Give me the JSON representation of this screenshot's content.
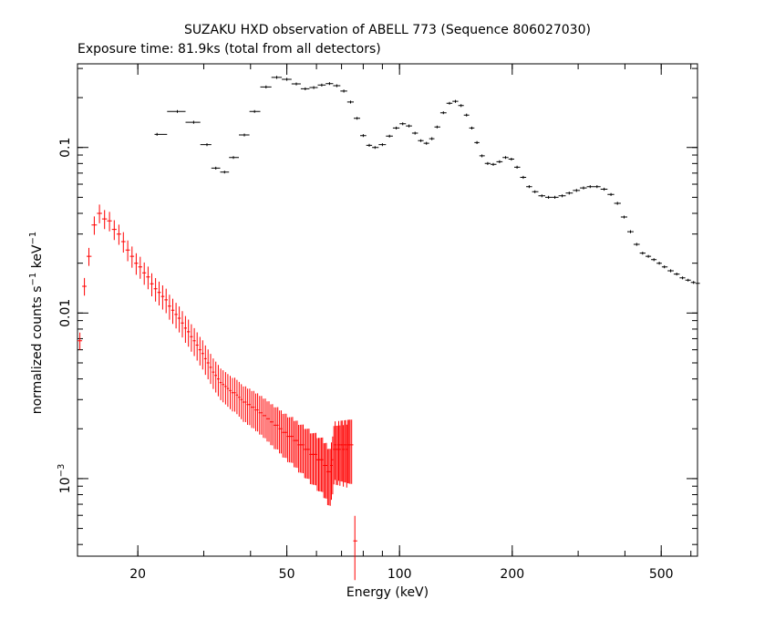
{
  "chart_data": {
    "type": "scatter",
    "title": "SUZAKU HXD observation of ABELL 773 (Sequence 806027030)",
    "subtitle": "Exposure time: 81.9ks (total from all detectors)",
    "xlabel": "Energy (keV)",
    "ylabel": "normalized counts s^-1 keV^-1",
    "ylabel_parts": {
      "main": "normalized counts s",
      "sup1": "−1",
      "unit": " keV",
      "sup2": "−1"
    },
    "x_scale": "log",
    "y_scale": "log",
    "xlim": [
      13.8,
      625
    ],
    "ylim": [
      0.00034,
      0.32
    ],
    "grid": false,
    "x_ticks": [
      {
        "value": 20,
        "label": "20"
      },
      {
        "value": 50,
        "label": "50"
      },
      {
        "value": 100,
        "label": "100"
      },
      {
        "value": 200,
        "label": "200"
      },
      {
        "value": 500,
        "label": "500"
      }
    ],
    "y_ticks": [
      {
        "value": 0.1,
        "label": "0.1"
      },
      {
        "value": 0.01,
        "label": "0.01"
      },
      {
        "value": 0.001,
        "label": "10",
        "sup": "−3"
      }
    ],
    "series": [
      {
        "color": "#000000",
        "points": [
          [
            22.5,
            0.12
          ],
          [
            25.5,
            0.165
          ],
          [
            28.2,
            0.142
          ],
          [
            30.6,
            0.104
          ],
          [
            32.3,
            0.075
          ],
          [
            34.1,
            0.071
          ],
          [
            36.0,
            0.087
          ],
          [
            38.5,
            0.119
          ],
          [
            41.0,
            0.165
          ],
          [
            44.0,
            0.232
          ],
          [
            47.0,
            0.265
          ],
          [
            50.0,
            0.258
          ],
          [
            53.0,
            0.242
          ],
          [
            56.0,
            0.226
          ],
          [
            59.0,
            0.23
          ],
          [
            62.0,
            0.238
          ],
          [
            65.0,
            0.243
          ],
          [
            68.0,
            0.236
          ],
          [
            71.0,
            0.219
          ],
          [
            74.0,
            0.188
          ],
          [
            77.0,
            0.15
          ],
          [
            80.0,
            0.118
          ],
          [
            83.0,
            0.103
          ],
          [
            86.0,
            0.1
          ],
          [
            90.0,
            0.104
          ],
          [
            94.0,
            0.117
          ],
          [
            98.0,
            0.131
          ],
          [
            102.0,
            0.139
          ],
          [
            106.0,
            0.135
          ],
          [
            110.0,
            0.122
          ],
          [
            114.0,
            0.11
          ],
          [
            118.0,
            0.106
          ],
          [
            122.0,
            0.113
          ],
          [
            126.0,
            0.133
          ],
          [
            131.0,
            0.162
          ],
          [
            136.0,
            0.185
          ],
          [
            141.0,
            0.19
          ],
          [
            146.0,
            0.179
          ],
          [
            151.0,
            0.157
          ],
          [
            156.0,
            0.131
          ],
          [
            161.0,
            0.107
          ],
          [
            166.0,
            0.089
          ],
          [
            172.0,
            0.08
          ],
          [
            178.0,
            0.079
          ],
          [
            185.0,
            0.082
          ],
          [
            192.0,
            0.087
          ],
          [
            199.0,
            0.085
          ],
          [
            206.0,
            0.076
          ],
          [
            214.0,
            0.066
          ],
          [
            222.0,
            0.058
          ],
          [
            230.0,
            0.054
          ],
          [
            240.0,
            0.051
          ],
          [
            250.0,
            0.05
          ],
          [
            260.0,
            0.05
          ],
          [
            272.0,
            0.051
          ],
          [
            284.0,
            0.053
          ],
          [
            297.0,
            0.055
          ],
          [
            310.0,
            0.057
          ],
          [
            323.0,
            0.058
          ],
          [
            337.0,
            0.058
          ],
          [
            352.0,
            0.056
          ],
          [
            367.0,
            0.052
          ],
          [
            382.0,
            0.046
          ],
          [
            398.0,
            0.038
          ],
          [
            414.0,
            0.031
          ],
          [
            430.0,
            0.026
          ],
          [
            446.0,
            0.023
          ],
          [
            462.0,
            0.022
          ],
          [
            478.0,
            0.021
          ],
          [
            494.0,
            0.02
          ],
          [
            510.0,
            0.019
          ],
          [
            530.0,
            0.018
          ],
          [
            550.0,
            0.0172
          ],
          [
            570.0,
            0.0163
          ],
          [
            590.0,
            0.0158
          ],
          [
            610.0,
            0.0153
          ],
          [
            625.0,
            0.0151
          ]
        ]
      },
      {
        "color": "#ff0000",
        "points": [
          [
            14.0,
            0.0068
          ],
          [
            14.4,
            0.0145
          ],
          [
            14.8,
            0.022
          ],
          [
            15.3,
            0.034
          ],
          [
            15.8,
            0.04
          ],
          [
            16.3,
            0.037
          ],
          [
            16.8,
            0.036
          ],
          [
            17.3,
            0.032
          ],
          [
            17.8,
            0.03
          ],
          [
            18.3,
            0.027
          ],
          [
            18.8,
            0.024
          ],
          [
            19.3,
            0.022
          ],
          [
            19.8,
            0.02
          ],
          [
            20.3,
            0.019
          ],
          [
            20.8,
            0.0175
          ],
          [
            21.3,
            0.0165
          ],
          [
            21.8,
            0.015
          ],
          [
            22.3,
            0.014
          ],
          [
            22.8,
            0.0133
          ],
          [
            23.3,
            0.0126
          ],
          [
            23.8,
            0.012
          ],
          [
            24.3,
            0.011
          ],
          [
            24.8,
            0.0104
          ],
          [
            25.3,
            0.0098
          ],
          [
            25.8,
            0.0093
          ],
          [
            26.3,
            0.0087
          ],
          [
            26.8,
            0.0081
          ],
          [
            27.3,
            0.0077
          ],
          [
            27.8,
            0.0072
          ],
          [
            28.3,
            0.0068
          ],
          [
            28.8,
            0.0064
          ],
          [
            29.3,
            0.006
          ],
          [
            29.8,
            0.0057
          ],
          [
            30.3,
            0.0053
          ],
          [
            30.8,
            0.005
          ],
          [
            31.3,
            0.0047
          ],
          [
            31.8,
            0.0044
          ],
          [
            32.3,
            0.0042
          ],
          [
            32.8,
            0.004
          ],
          [
            33.3,
            0.0038
          ],
          [
            33.8,
            0.0037
          ],
          [
            34.3,
            0.0036
          ],
          [
            34.8,
            0.0035
          ],
          [
            35.3,
            0.0034
          ],
          [
            35.8,
            0.0033
          ],
          [
            36.3,
            0.0033
          ],
          [
            36.8,
            0.0032
          ],
          [
            37.3,
            0.0031
          ],
          [
            37.8,
            0.003
          ],
          [
            38.3,
            0.0029
          ],
          [
            38.8,
            0.0029
          ],
          [
            39.3,
            0.0028
          ],
          [
            39.8,
            0.0028
          ],
          [
            40.3,
            0.0027
          ],
          [
            40.8,
            0.0027
          ],
          [
            41.3,
            0.0026
          ],
          [
            41.8,
            0.0026
          ],
          [
            42.3,
            0.0025
          ],
          [
            42.8,
            0.0025
          ],
          [
            43.3,
            0.0024
          ],
          [
            43.8,
            0.0024
          ],
          [
            44.3,
            0.0023
          ],
          [
            44.8,
            0.0023
          ],
          [
            45.3,
            0.0022
          ],
          [
            45.8,
            0.0022
          ],
          [
            46.3,
            0.0021
          ],
          [
            46.8,
            0.0021
          ],
          [
            47.3,
            0.0021
          ],
          [
            47.8,
            0.002
          ],
          [
            48.3,
            0.002
          ],
          [
            48.8,
            0.0019
          ],
          [
            49.3,
            0.0019
          ],
          [
            49.8,
            0.0019
          ],
          [
            50.3,
            0.0018
          ],
          [
            50.8,
            0.0018
          ],
          [
            51.3,
            0.0018
          ],
          [
            51.8,
            0.0018
          ],
          [
            52.3,
            0.0017
          ],
          [
            52.8,
            0.0017
          ],
          [
            53.3,
            0.0017
          ],
          [
            53.8,
            0.0016
          ],
          [
            54.3,
            0.0016
          ],
          [
            54.8,
            0.0016
          ],
          [
            55.3,
            0.0016
          ],
          [
            55.8,
            0.0015
          ],
          [
            56.3,
            0.0015
          ],
          [
            56.8,
            0.0015
          ],
          [
            57.3,
            0.0015
          ],
          [
            57.8,
            0.0014
          ],
          [
            58.3,
            0.0014
          ],
          [
            58.8,
            0.0014
          ],
          [
            59.3,
            0.0014
          ],
          [
            59.8,
            0.0014
          ],
          [
            60.3,
            0.0013
          ],
          [
            60.8,
            0.0013
          ],
          [
            61.3,
            0.0013
          ],
          [
            61.8,
            0.0013
          ],
          [
            62.3,
            0.0013
          ],
          [
            62.8,
            0.0012
          ],
          [
            63.3,
            0.0012
          ],
          [
            63.8,
            0.0012
          ],
          [
            64.3,
            0.0011
          ],
          [
            64.8,
            0.0011
          ],
          [
            65.3,
            0.0011
          ],
          [
            65.8,
            0.0012
          ],
          [
            66.3,
            0.0013
          ],
          [
            66.8,
            0.0015
          ],
          [
            67.3,
            0.0016
          ],
          [
            67.8,
            0.0015
          ],
          [
            68.3,
            0.0015
          ],
          [
            68.8,
            0.0016
          ],
          [
            69.3,
            0.0015
          ],
          [
            69.8,
            0.0016
          ],
          [
            70.3,
            0.0016
          ],
          [
            70.8,
            0.0015
          ],
          [
            71.3,
            0.0016
          ],
          [
            71.8,
            0.0016
          ],
          [
            72.3,
            0.0015
          ],
          [
            72.8,
            0.0016
          ],
          [
            73.3,
            0.0016
          ],
          [
            73.8,
            0.0016
          ],
          [
            74.5,
            0.0016
          ],
          [
            76.0,
            0.00042
          ]
        ]
      }
    ]
  }
}
